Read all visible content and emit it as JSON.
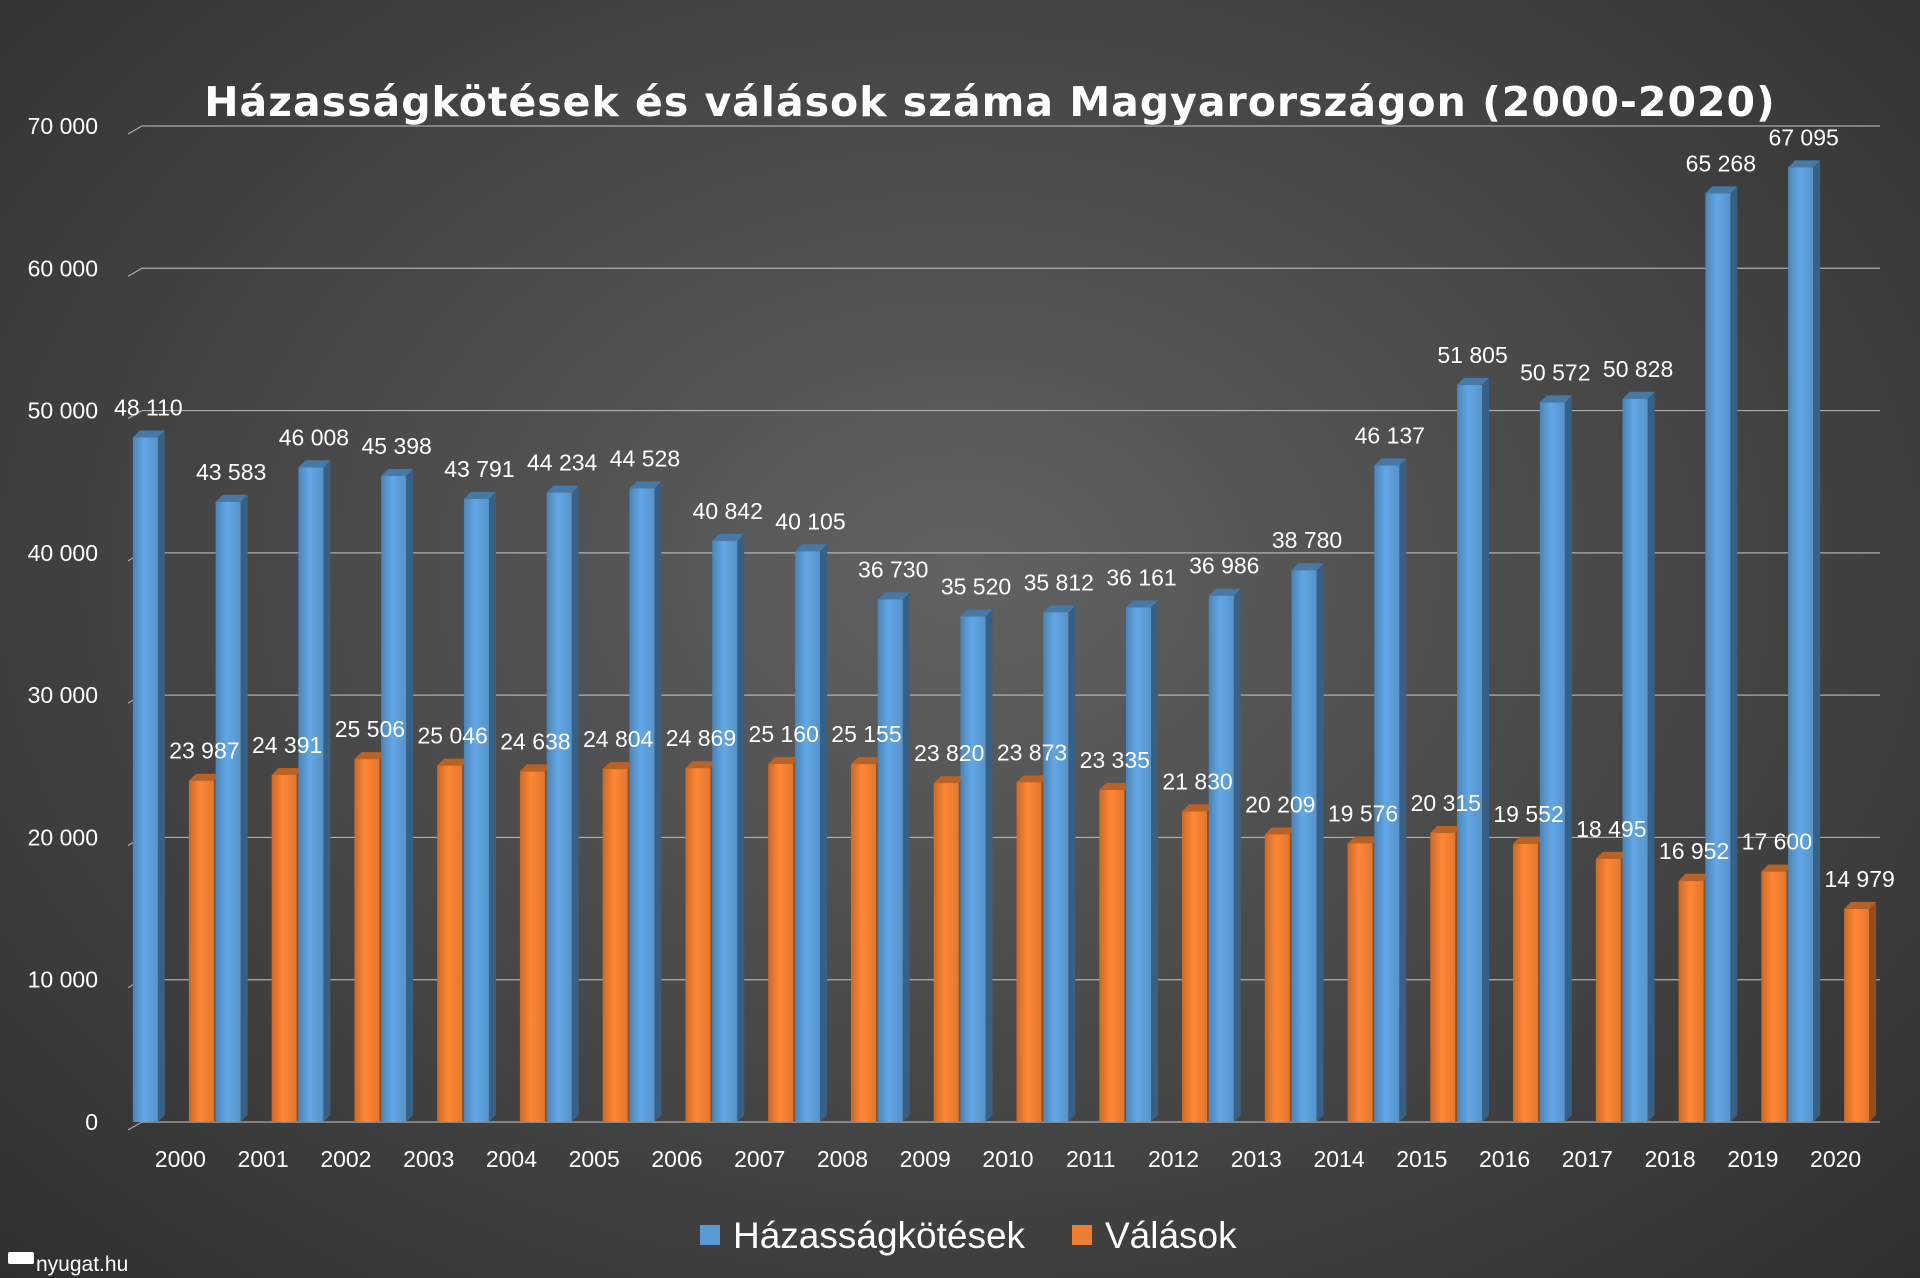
{
  "chart_data": {
    "type": "bar",
    "title": "Házasságkötések és válások száma Magyarországon (2000-2020)",
    "categories": [
      "2000",
      "2001",
      "2002",
      "2003",
      "2004",
      "2005",
      "2006",
      "2007",
      "2008",
      "2009",
      "2010",
      "2011",
      "2012",
      "2013",
      "2014",
      "2015",
      "2016",
      "2017",
      "2018",
      "2019",
      "2020"
    ],
    "series": [
      {
        "name": "Házasságkötések",
        "color": "#5b9bd5",
        "values": [
          48110,
          43583,
          46008,
          45398,
          43791,
          44234,
          44528,
          40842,
          40105,
          36730,
          35520,
          35812,
          36161,
          36986,
          38780,
          46137,
          51805,
          50572,
          50828,
          65268,
          67095
        ],
        "labels": [
          "48 110",
          "43 583",
          "46 008",
          "45 398",
          "43 791",
          "44 234",
          "44 528",
          "40 842",
          "40 105",
          "36 730",
          "35 520",
          "35 812",
          "36 161",
          "36 986",
          "38 780",
          "46 137",
          "51 805",
          "50 572",
          "50 828",
          "65 268",
          "67 095"
        ]
      },
      {
        "name": "Válások",
        "color": "#ed7d31",
        "values": [
          23987,
          24391,
          25506,
          25046,
          24638,
          24804,
          24869,
          25160,
          25155,
          23820,
          23873,
          23335,
          21830,
          20209,
          19576,
          20315,
          19552,
          18495,
          16952,
          17600,
          14979
        ],
        "labels": [
          "23 987",
          "24 391",
          "25 506",
          "25 046",
          "24 638",
          "24 804",
          "24 869",
          "25 160",
          "25 155",
          "23 820",
          "23 873",
          "23 335",
          "21 830",
          "20 209",
          "19 576",
          "20 315",
          "19 552",
          "18 495",
          "16 952",
          "17 600",
          "14 979"
        ]
      }
    ],
    "ylim": [
      0,
      70000
    ],
    "yticks": [
      0,
      10000,
      20000,
      30000,
      40000,
      50000,
      60000,
      70000
    ],
    "ytick_labels": [
      "0",
      "10 000",
      "20 000",
      "30 000",
      "40 000",
      "50 000",
      "60 000",
      "70 000"
    ],
    "xlabel": "",
    "ylabel": "",
    "grid": true,
    "legend": "bottom-center"
  },
  "source": "nyugat.hu"
}
